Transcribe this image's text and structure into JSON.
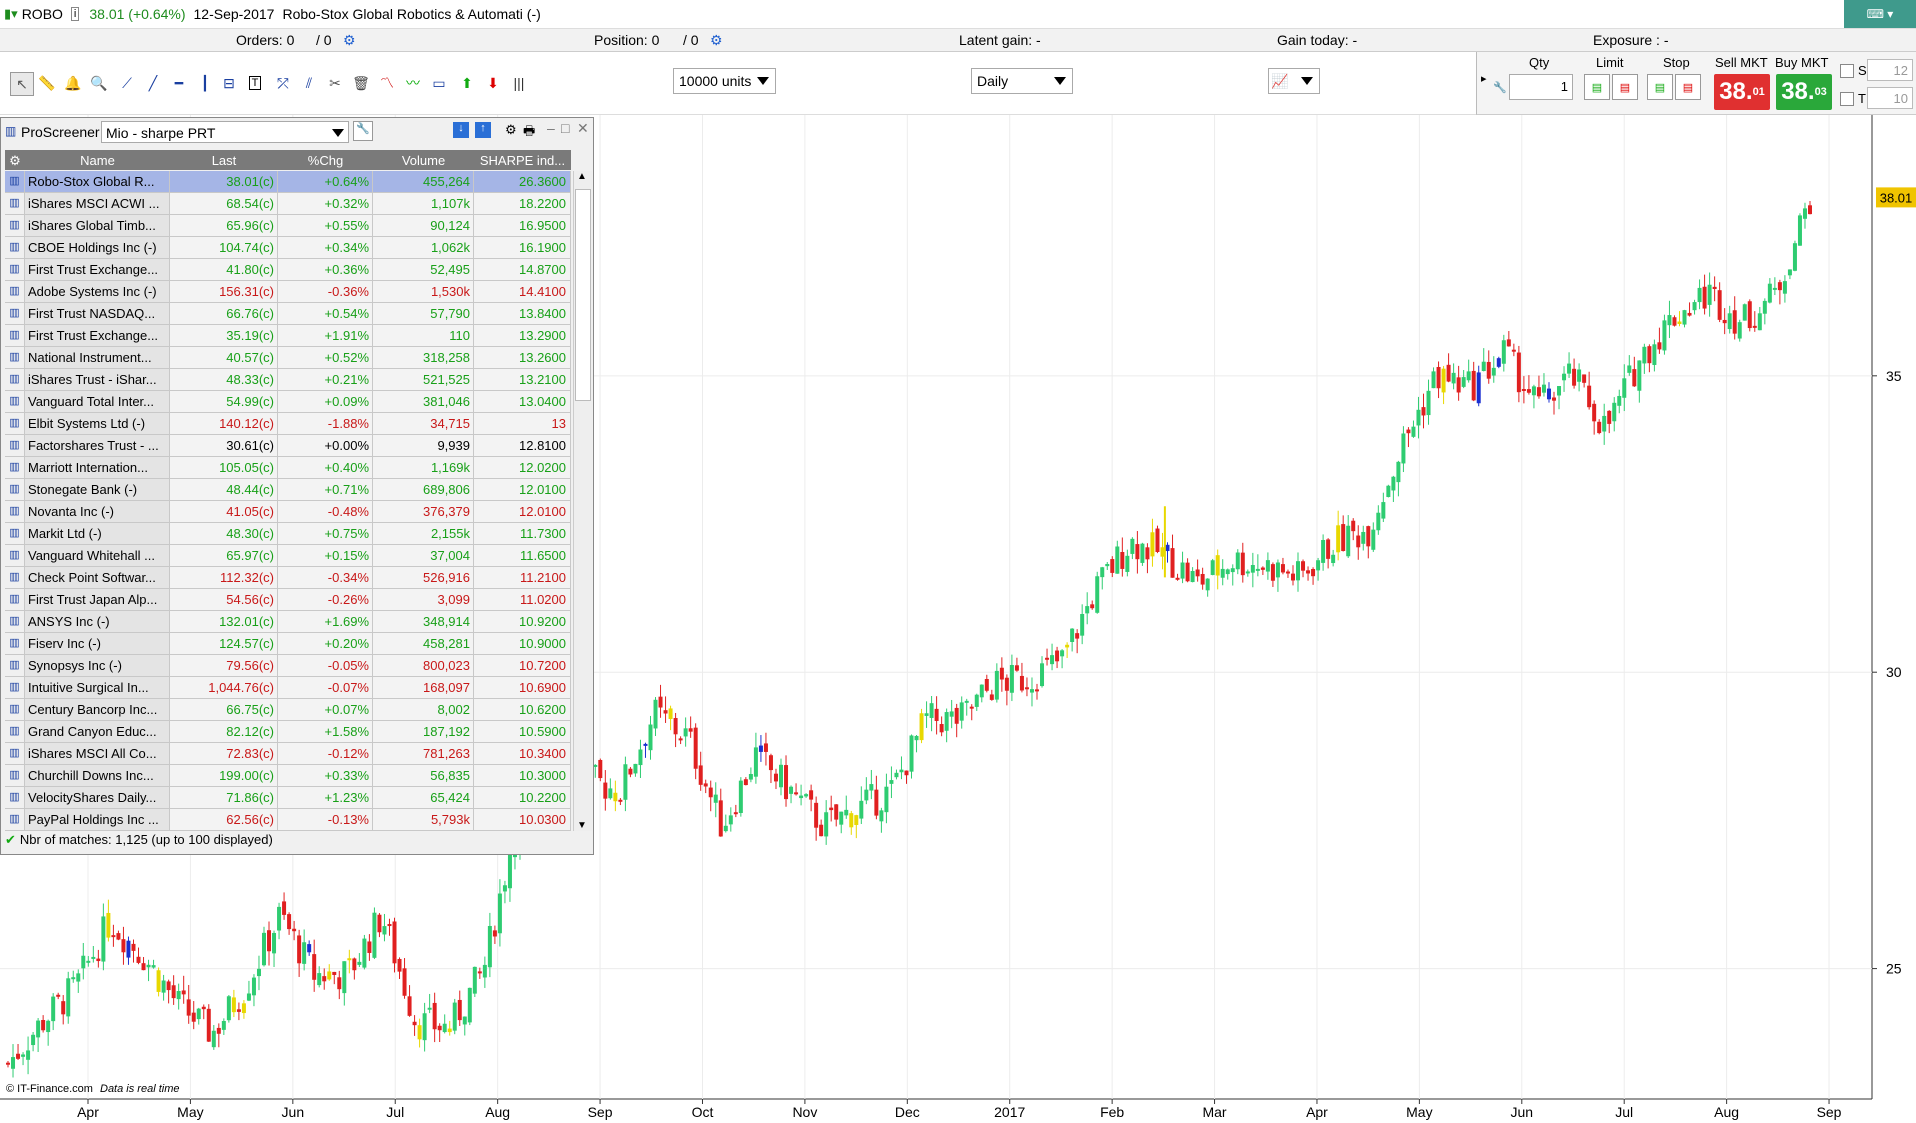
{
  "window": {
    "symbol": "ROBO",
    "quote": "38.01 (+0.64%)",
    "date": "12-Sep-2017",
    "title": "Robo-Stox Global Robotics & Automati (-)"
  },
  "infobar": {
    "orders": "Orders: 0",
    "orders_sep": "/ 0",
    "position": "Position: 0",
    "position_sep": "/ 0",
    "latent_gain": "Latent gain: -",
    "gain_today": "Gain today: -",
    "exposure": "Exposure : -"
  },
  "toolbar": {
    "units_select": "10000 units",
    "period_select": "Daily"
  },
  "order_panel": {
    "qty_label": "Qty",
    "qty_value": "1",
    "limit_label": "Limit",
    "stop_label": "Stop",
    "sell_label": "Sell MKT",
    "buy_label": "Buy MKT",
    "sell_price_main": "38.",
    "sell_price_sup": "01",
    "buy_price_main": "38.",
    "buy_price_sup": "03",
    "s_label": "S",
    "t_label": "T",
    "s_value": "12",
    "t_value": "10"
  },
  "screener": {
    "name": "ProScreener",
    "list_name": "Mio - sharpe PRT",
    "columns": [
      "Name",
      "Last",
      "%Chg",
      "Volume",
      "SHARPE ind..."
    ],
    "rows": [
      {
        "name": "Robo-Stox Global R...",
        "last": "38.01(c)",
        "chg": "+0.64%",
        "vol": "455,264",
        "sharpe": "26.3600",
        "dir": "up"
      },
      {
        "name": "iShares MSCI ACWI ...",
        "last": "68.54(c)",
        "chg": "+0.32%",
        "vol": "1,107k",
        "sharpe": "18.2200",
        "dir": "up"
      },
      {
        "name": "iShares Global Timb...",
        "last": "65.96(c)",
        "chg": "+0.55%",
        "vol": "90,124",
        "sharpe": "16.9500",
        "dir": "up"
      },
      {
        "name": "CBOE Holdings Inc (-)",
        "last": "104.74(c)",
        "chg": "+0.34%",
        "vol": "1,062k",
        "sharpe": "16.1900",
        "dir": "up"
      },
      {
        "name": "First Trust Exchange...",
        "last": "41.80(c)",
        "chg": "+0.36%",
        "vol": "52,495",
        "sharpe": "14.8700",
        "dir": "up"
      },
      {
        "name": "Adobe Systems Inc (-)",
        "last": "156.31(c)",
        "chg": "-0.36%",
        "vol": "1,530k",
        "sharpe": "14.4100",
        "dir": "dn"
      },
      {
        "name": "First Trust NASDAQ...",
        "last": "66.76(c)",
        "chg": "+0.54%",
        "vol": "57,790",
        "sharpe": "13.8400",
        "dir": "up"
      },
      {
        "name": "First Trust Exchange...",
        "last": "35.19(c)",
        "chg": "+1.91%",
        "vol": "110",
        "sharpe": "13.2900",
        "dir": "up"
      },
      {
        "name": "National Instrument...",
        "last": "40.57(c)",
        "chg": "+0.52%",
        "vol": "318,258",
        "sharpe": "13.2600",
        "dir": "up"
      },
      {
        "name": "iShares Trust - iShar...",
        "last": "48.33(c)",
        "chg": "+0.21%",
        "vol": "521,525",
        "sharpe": "13.2100",
        "dir": "up"
      },
      {
        "name": "Vanguard Total Inter...",
        "last": "54.99(c)",
        "chg": "+0.09%",
        "vol": "381,046",
        "sharpe": "13.0400",
        "dir": "up"
      },
      {
        "name": "Elbit Systems Ltd (-)",
        "last": "140.12(c)",
        "chg": "-1.88%",
        "vol": "34,715",
        "sharpe": "13",
        "dir": "dn"
      },
      {
        "name": "Factorshares Trust - ...",
        "last": "30.61(c)",
        "chg": "+0.00%",
        "vol": "9,939",
        "sharpe": "12.8100",
        "dir": "nt"
      },
      {
        "name": "Marriott Internation...",
        "last": "105.05(c)",
        "chg": "+0.40%",
        "vol": "1,169k",
        "sharpe": "12.0200",
        "dir": "up"
      },
      {
        "name": "Stonegate Bank (-)",
        "last": "48.44(c)",
        "chg": "+0.71%",
        "vol": "689,806",
        "sharpe": "12.0100",
        "dir": "up"
      },
      {
        "name": "Novanta Inc (-)",
        "last": "41.05(c)",
        "chg": "-0.48%",
        "vol": "376,379",
        "sharpe": "12.0100",
        "dir": "dn"
      },
      {
        "name": "Markit Ltd (-)",
        "last": "48.30(c)",
        "chg": "+0.75%",
        "vol": "2,155k",
        "sharpe": "11.7300",
        "dir": "up"
      },
      {
        "name": "Vanguard Whitehall ...",
        "last": "65.97(c)",
        "chg": "+0.15%",
        "vol": "37,004",
        "sharpe": "11.6500",
        "dir": "up"
      },
      {
        "name": "Check Point Softwar...",
        "last": "112.32(c)",
        "chg": "-0.34%",
        "vol": "526,916",
        "sharpe": "11.2100",
        "dir": "dn"
      },
      {
        "name": "First Trust Japan Alp...",
        "last": "54.56(c)",
        "chg": "-0.26%",
        "vol": "3,099",
        "sharpe": "11.0200",
        "dir": "dn"
      },
      {
        "name": "ANSYS Inc (-)",
        "last": "132.01(c)",
        "chg": "+1.69%",
        "vol": "348,914",
        "sharpe": "10.9200",
        "dir": "up"
      },
      {
        "name": "Fiserv Inc (-)",
        "last": "124.57(c)",
        "chg": "+0.20%",
        "vol": "458,281",
        "sharpe": "10.9000",
        "dir": "up"
      },
      {
        "name": "Synopsys Inc (-)",
        "last": "79.56(c)",
        "chg": "-0.05%",
        "vol": "800,023",
        "sharpe": "10.7200",
        "dir": "dn"
      },
      {
        "name": "Intuitive Surgical In...",
        "last": "1,044.76(c)",
        "chg": "-0.07%",
        "vol": "168,097",
        "sharpe": "10.6900",
        "dir": "dn"
      },
      {
        "name": "Century Bancorp Inc...",
        "last": "66.75(c)",
        "chg": "+0.07%",
        "vol": "8,002",
        "sharpe": "10.6200",
        "dir": "up"
      },
      {
        "name": "Grand Canyon Educ...",
        "last": "82.12(c)",
        "chg": "+1.58%",
        "vol": "187,192",
        "sharpe": "10.5900",
        "dir": "up"
      },
      {
        "name": "iShares MSCI All Co...",
        "last": "72.83(c)",
        "chg": "-0.12%",
        "vol": "781,263",
        "sharpe": "10.3400",
        "dir": "dn"
      },
      {
        "name": "Churchill Downs Inc...",
        "last": "199.00(c)",
        "chg": "+0.33%",
        "vol": "56,835",
        "sharpe": "10.3000",
        "dir": "up"
      },
      {
        "name": "VelocityShares Daily...",
        "last": "71.86(c)",
        "chg": "+1.23%",
        "vol": "65,424",
        "sharpe": "10.2200",
        "dir": "up"
      },
      {
        "name": "PayPal Holdings Inc ...",
        "last": "62.56(c)",
        "chg": "-0.13%",
        "vol": "5,793k",
        "sharpe": "10.0300",
        "dir": "dn"
      }
    ],
    "footer": "Nbr of matches: 1,125 (up to 100 displayed)"
  },
  "chart": {
    "copyright": "© IT-Finance.com",
    "realtime_note": "Data is real time",
    "last_price_label": "38.01",
    "colors": {
      "up": "#2ecc71",
      "down": "#e02020",
      "yellow": "#e8d800",
      "blue": "#1a2fd0",
      "price_tag": "#f0c400"
    }
  },
  "chart_data": {
    "type": "candlestick",
    "x_ticks": [
      "Apr",
      "May",
      "Jun",
      "Jul",
      "Aug",
      "Sep",
      "Oct",
      "Nov",
      "Dec",
      "2017",
      "Feb",
      "Mar",
      "Apr",
      "May",
      "Jun",
      "Jul",
      "Aug",
      "Sep"
    ],
    "y_ticks": [
      25,
      30,
      35
    ],
    "ylim": [
      22.8,
      39.4
    ],
    "last": 38.01,
    "spike_high": 32.8,
    "closes": [
      23.4,
      24.1,
      24.7,
      25.8,
      25.2,
      24.4,
      23.9,
      24.7,
      25.9,
      24.9,
      24.9,
      25.9,
      24.1,
      24.0,
      25.0,
      27.6,
      27.4,
      28.2,
      28.0,
      29.3,
      28.9,
      27.4,
      28.6,
      28.0,
      27.4,
      27.7,
      28.0,
      29.2,
      29.2,
      29.8,
      29.9,
      30.2,
      31.4,
      32.2,
      32.0,
      31.5,
      31.9,
      31.8,
      31.6,
      32.2,
      32.4,
      33.8,
      35.0,
      34.8,
      35.4,
      34.5,
      35.0,
      34.1,
      35.3,
      36.0,
      36.4,
      35.9,
      36.4,
      38.0
    ]
  }
}
